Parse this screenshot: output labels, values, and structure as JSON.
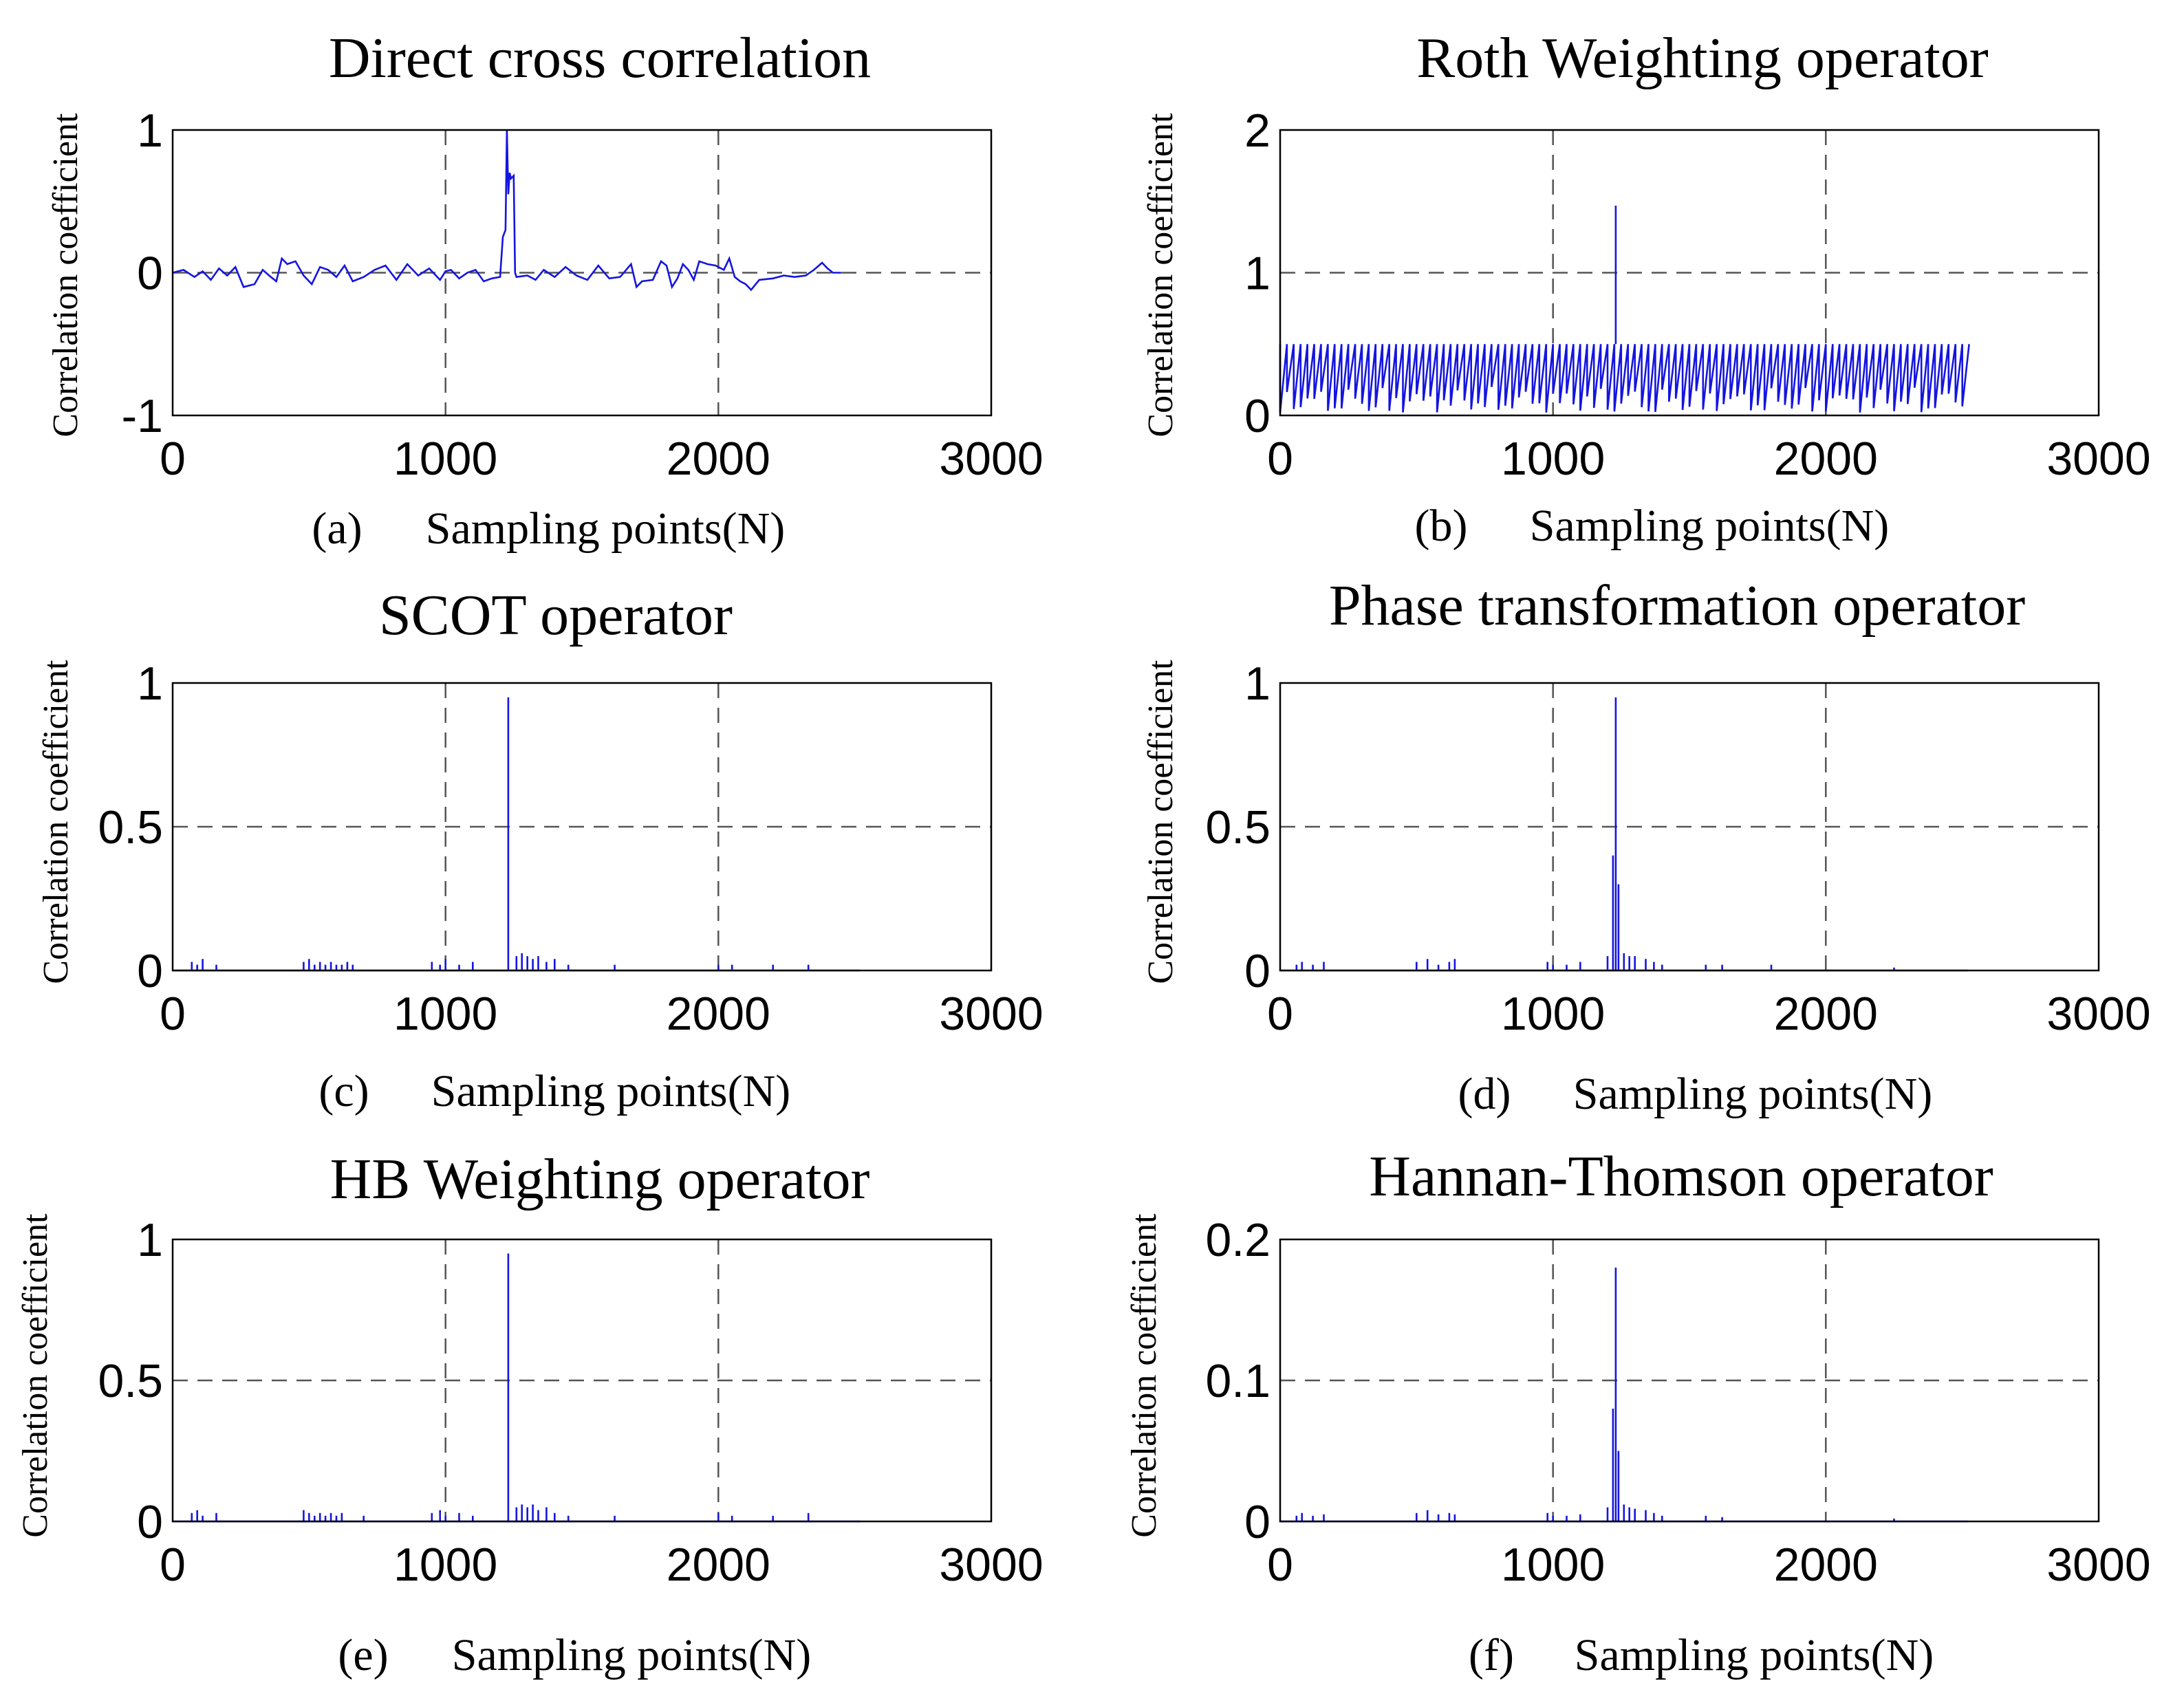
{
  "chart_data": [
    {
      "type": "line",
      "title": "Direct cross correlation",
      "caption_letter": "(a)",
      "xlabel": "Sampling points(N)",
      "ylabel": "Correlation coefficient",
      "xlim": [
        0,
        3000
      ],
      "ylim": [
        -1,
        1
      ],
      "xticks": [
        0,
        1000,
        2000,
        3000
      ],
      "xtick_labels": [
        "0",
        "1000",
        "2000",
        "3000"
      ],
      "yticks": [
        -1,
        0,
        1
      ],
      "ytick_labels": [
        "-1",
        "0",
        "1"
      ],
      "grid": true,
      "color": "#1515e0",
      "series": [
        {
          "name": "Direct cross correlation",
          "style": "line",
          "x": [
            0,
            40,
            80,
            110,
            140,
            170,
            200,
            230,
            260,
            300,
            330,
            360,
            380,
            400,
            420,
            450,
            480,
            510,
            540,
            570,
            600,
            630,
            660,
            700,
            740,
            780,
            820,
            860,
            900,
            940,
            980,
            1000,
            1020,
            1050,
            1080,
            1110,
            1140,
            1170,
            1200,
            1210,
            1220,
            1225,
            1230,
            1235,
            1240,
            1250,
            1255,
            1260,
            1300,
            1330,
            1360,
            1400,
            1440,
            1480,
            1520,
            1560,
            1600,
            1640,
            1680,
            1700,
            1720,
            1760,
            1790,
            1810,
            1830,
            1850,
            1870,
            1890,
            1910,
            1930,
            1960,
            1990,
            2020,
            2040,
            2060,
            2080,
            2100,
            2120,
            2150,
            2200,
            2240,
            2280,
            2320,
            2350,
            2380,
            2400,
            2420,
            2450
          ],
          "y": [
            0,
            0.02,
            -0.03,
            0.01,
            -0.05,
            0.03,
            -0.02,
            0.04,
            -0.1,
            -0.08,
            0.02,
            -0.03,
            -0.06,
            0.1,
            0.06,
            0.08,
            -0.02,
            -0.08,
            0.04,
            0.02,
            -0.03,
            0.05,
            -0.06,
            -0.03,
            0.02,
            0.05,
            -0.05,
            0.06,
            -0.02,
            0.03,
            -0.05,
            0.01,
            0.02,
            -0.04,
            0,
            0.02,
            -0.06,
            -0.04,
            -0.03,
            0.25,
            0.3,
            1.0,
            0.55,
            0.7,
            0.66,
            0.68,
            0,
            -0.03,
            -0.02,
            -0.05,
            0.02,
            -0.03,
            0.04,
            -0.02,
            -0.05,
            0.05,
            -0.04,
            -0.03,
            0.06,
            -0.1,
            -0.06,
            -0.05,
            0.08,
            0.05,
            -0.1,
            -0.04,
            0.06,
            0.02,
            -0.05,
            0.08,
            0.06,
            0.05,
            0.02,
            0.1,
            -0.03,
            -0.06,
            -0.08,
            -0.12,
            -0.05,
            -0.04,
            -0.02,
            -0.03,
            -0.02,
            0.02,
            0.07,
            0.03,
            0,
            0
          ]
        }
      ]
    },
    {
      "type": "line",
      "title": "Roth Weighting operator",
      "caption_letter": "(b)",
      "xlabel": "Sampling points(N)",
      "ylabel": "Correlation coefficient",
      "xlim": [
        0,
        3000
      ],
      "ylim": [
        0,
        2
      ],
      "xticks": [
        0,
        1000,
        2000,
        3000
      ],
      "xtick_labels": [
        "0",
        "1000",
        "2000",
        "3000"
      ],
      "yticks": [
        0,
        1,
        2
      ],
      "ytick_labels": [
        "0",
        "1",
        "2"
      ],
      "grid": true,
      "color": "#1515e0",
      "series": [
        {
          "name": "Roth Weighting operator",
          "style": "band",
          "x_range": [
            0,
            2520
          ],
          "upper": 0.5,
          "lower_min": 0.02,
          "lower_max": 0.2,
          "step": 25,
          "peak_x": 1230,
          "peak_y": 1.47
        }
      ]
    },
    {
      "type": "line",
      "title": "SCOT operator",
      "caption_letter": "(c)",
      "xlabel": "Sampling points(N)",
      "ylabel": "Correlation coefficient",
      "xlim": [
        0,
        3000
      ],
      "ylim": [
        0,
        1
      ],
      "xticks": [
        0,
        1000,
        2000,
        3000
      ],
      "xtick_labels": [
        "0",
        "1000",
        "2000",
        "3000"
      ],
      "yticks": [
        0,
        0.5,
        1
      ],
      "ytick_labels": [
        "0",
        "0.5",
        "1"
      ],
      "grid": true,
      "color": "#1515e0",
      "series": [
        {
          "name": "SCOT operator",
          "style": "spikes",
          "x_end": 2520,
          "spikes": [
            [
              70,
              0.03
            ],
            [
              90,
              0.02
            ],
            [
              110,
              0.04
            ],
            [
              160,
              0.02
            ],
            [
              480,
              0.03
            ],
            [
              500,
              0.04
            ],
            [
              520,
              0.02
            ],
            [
              540,
              0.03
            ],
            [
              560,
              0.02
            ],
            [
              580,
              0.03
            ],
            [
              600,
              0.02
            ],
            [
              620,
              0.02
            ],
            [
              640,
              0.03
            ],
            [
              660,
              0.02
            ],
            [
              950,
              0.03
            ],
            [
              980,
              0.02
            ],
            [
              1000,
              0.04
            ],
            [
              1050,
              0.02
            ],
            [
              1100,
              0.03
            ],
            [
              1230,
              0.95
            ],
            [
              1260,
              0.05
            ],
            [
              1280,
              0.06
            ],
            [
              1300,
              0.05
            ],
            [
              1320,
              0.04
            ],
            [
              1340,
              0.05
            ],
            [
              1370,
              0.03
            ],
            [
              1400,
              0.04
            ],
            [
              1450,
              0.02
            ],
            [
              1620,
              0.02
            ],
            [
              2000,
              0.02
            ],
            [
              2050,
              0.02
            ],
            [
              2200,
              0.02
            ],
            [
              2330,
              0.02
            ]
          ]
        }
      ]
    },
    {
      "type": "line",
      "title": "Phase transformation operator",
      "caption_letter": "(d)",
      "xlabel": "Sampling points(N)",
      "ylabel": "Correlation coefficient",
      "xlim": [
        0,
        3000
      ],
      "ylim": [
        0,
        1
      ],
      "xticks": [
        0,
        1000,
        2000,
        3000
      ],
      "xtick_labels": [
        "0",
        "1000",
        "2000",
        "3000"
      ],
      "yticks": [
        0,
        0.5,
        1
      ],
      "ytick_labels": [
        "0",
        "0.5",
        "1"
      ],
      "grid": true,
      "color": "#1515e0",
      "series": [
        {
          "name": "Phase transformation operator",
          "style": "spikes",
          "x_end": 2520,
          "spikes": [
            [
              60,
              0.02
            ],
            [
              80,
              0.03
            ],
            [
              120,
              0.02
            ],
            [
              160,
              0.03
            ],
            [
              500,
              0.03
            ],
            [
              540,
              0.04
            ],
            [
              580,
              0.02
            ],
            [
              620,
              0.03
            ],
            [
              640,
              0.04
            ],
            [
              980,
              0.03
            ],
            [
              1000,
              0.02
            ],
            [
              1050,
              0.02
            ],
            [
              1100,
              0.03
            ],
            [
              1200,
              0.05
            ],
            [
              1220,
              0.4
            ],
            [
              1230,
              0.95
            ],
            [
              1240,
              0.3
            ],
            [
              1260,
              0.06
            ],
            [
              1280,
              0.05
            ],
            [
              1300,
              0.05
            ],
            [
              1340,
              0.04
            ],
            [
              1370,
              0.03
            ],
            [
              1400,
              0.02
            ],
            [
              1560,
              0.02
            ],
            [
              1620,
              0.02
            ],
            [
              1800,
              0.02
            ],
            [
              2250,
              0.01
            ]
          ]
        }
      ]
    },
    {
      "type": "line",
      "title": "HB Weighting operator",
      "caption_letter": "(e)",
      "xlabel": "Sampling points(N)",
      "ylabel": "Correlation coefficient",
      "xlim": [
        0,
        3000
      ],
      "ylim": [
        0,
        1
      ],
      "xticks": [
        0,
        1000,
        2000,
        3000
      ],
      "xtick_labels": [
        "0",
        "1000",
        "2000",
        "3000"
      ],
      "yticks": [
        0,
        0.5,
        1
      ],
      "ytick_labels": [
        "0",
        "0.5",
        "1"
      ],
      "grid": true,
      "color": "#1515e0",
      "series": [
        {
          "name": "HB Weighting operator",
          "style": "spikes",
          "x_end": 2520,
          "spikes": [
            [
              70,
              0.03
            ],
            [
              90,
              0.04
            ],
            [
              110,
              0.02
            ],
            [
              160,
              0.03
            ],
            [
              480,
              0.04
            ],
            [
              500,
              0.03
            ],
            [
              520,
              0.02
            ],
            [
              540,
              0.03
            ],
            [
              560,
              0.02
            ],
            [
              580,
              0.03
            ],
            [
              600,
              0.02
            ],
            [
              620,
              0.03
            ],
            [
              700,
              0.02
            ],
            [
              950,
              0.03
            ],
            [
              980,
              0.04
            ],
            [
              1000,
              0.02
            ],
            [
              1050,
              0.03
            ],
            [
              1100,
              0.02
            ],
            [
              1230,
              0.95
            ],
            [
              1260,
              0.05
            ],
            [
              1280,
              0.06
            ],
            [
              1300,
              0.05
            ],
            [
              1320,
              0.06
            ],
            [
              1340,
              0.04
            ],
            [
              1370,
              0.05
            ],
            [
              1400,
              0.03
            ],
            [
              1450,
              0.02
            ],
            [
              1620,
              0.02
            ],
            [
              2000,
              0.03
            ],
            [
              2050,
              0.02
            ],
            [
              2200,
              0.02
            ],
            [
              2330,
              0.03
            ]
          ]
        }
      ]
    },
    {
      "type": "line",
      "title": "Hannan-Thomson operator",
      "caption_letter": "(f)",
      "xlabel": "Sampling points(N)",
      "ylabel": "Correlation coefficient",
      "xlim": [
        0,
        3000
      ],
      "ylim": [
        0,
        0.2
      ],
      "xticks": [
        0,
        1000,
        2000,
        3000
      ],
      "xtick_labels": [
        "0",
        "1000",
        "2000",
        "3000"
      ],
      "yticks": [
        0,
        0.1,
        0.2
      ],
      "ytick_labels": [
        "0",
        "0.1",
        "0.2"
      ],
      "grid": true,
      "color": "#1515e0",
      "series": [
        {
          "name": "Hannan-Thomson operator",
          "style": "spikes",
          "x_end": 2520,
          "spikes": [
            [
              60,
              0.004
            ],
            [
              80,
              0.006
            ],
            [
              120,
              0.004
            ],
            [
              160,
              0.005
            ],
            [
              500,
              0.006
            ],
            [
              540,
              0.008
            ],
            [
              580,
              0.005
            ],
            [
              620,
              0.006
            ],
            [
              640,
              0.005
            ],
            [
              980,
              0.006
            ],
            [
              1000,
              0.004
            ],
            [
              1050,
              0.004
            ],
            [
              1100,
              0.005
            ],
            [
              1200,
              0.01
            ],
            [
              1220,
              0.08
            ],
            [
              1230,
              0.18
            ],
            [
              1240,
              0.05
            ],
            [
              1260,
              0.012
            ],
            [
              1280,
              0.01
            ],
            [
              1300,
              0.009
            ],
            [
              1340,
              0.008
            ],
            [
              1370,
              0.006
            ],
            [
              1400,
              0.004
            ],
            [
              1560,
              0.004
            ],
            [
              1620,
              0.003
            ],
            [
              2250,
              0.002
            ]
          ]
        }
      ]
    }
  ]
}
